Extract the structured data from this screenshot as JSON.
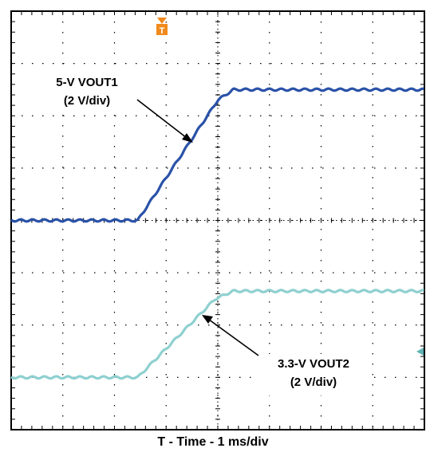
{
  "chart_data": {
    "type": "line",
    "title": "",
    "xlabel": "T - Time - 1 ms/div",
    "ylabel": "",
    "grid": true,
    "xlim": [
      0,
      8
    ],
    "x_unit": "ms",
    "y_unit": "V",
    "series": [
      {
        "name": "5-V VOUT1",
        "scale_label": "(2 V/div)",
        "color": "#2a52a8",
        "x": [
          0,
          2.45,
          4.0,
          4.3,
          8.0
        ],
        "y": [
          0,
          0,
          4.6,
          5.0,
          5.0
        ]
      },
      {
        "name": "3.3-V VOUT2",
        "scale_label": "(2 V/div)",
        "color": "#8fd0d0",
        "x": [
          0,
          2.45,
          3.95,
          4.3,
          8.0
        ],
        "y": [
          0,
          0,
          3.0,
          3.3,
          3.3
        ]
      }
    ],
    "annotations": [
      {
        "label": "5-V VOUT1",
        "sub": "(2 V/div)"
      },
      {
        "label": "3.3-V VOUT2",
        "sub": "(2 V/div)"
      }
    ]
  },
  "colors": {
    "ch1": "#2a52a8",
    "ch2": "#8fd0d0",
    "trigger_marker": "#f08a1c",
    "grid": "#000000"
  }
}
